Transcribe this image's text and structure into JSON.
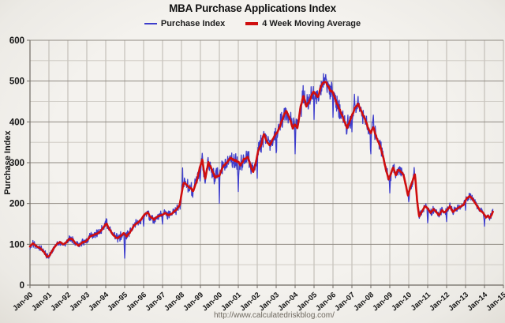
{
  "title": "MBA Purchase Applications Index",
  "legend": {
    "items": [
      {
        "label": "Purchase Index",
        "color": "#3d3dcb",
        "thickness": 2
      },
      {
        "label": "4 Week Moving Average",
        "color": "#cf0e0e",
        "thickness": 4
      }
    ]
  },
  "watermark": "http://www.calculatedriskblog.com/",
  "axes": {
    "ylabel": "Purchase Index",
    "y_ticks": [
      0,
      100,
      200,
      300,
      400,
      500,
      600
    ],
    "x_labels": [
      "Jan-90",
      "Jan-91",
      "Jan-92",
      "Jan-93",
      "Jan-94",
      "Jan-95",
      "Jan-96",
      "Jan-97",
      "Jan-98",
      "Jan-99",
      "Jan-00",
      "Jan-01",
      "Jan-02",
      "Jan-03",
      "Jan-04",
      "Jan-05",
      "Jan-06",
      "Jan-07",
      "Jan-08",
      "Jan-09",
      "Jan-10",
      "Jan-11",
      "Jan-12",
      "Jan-13",
      "Jan-14",
      "Jan-15"
    ]
  },
  "colors": {
    "blue_line": "#3d3dcb",
    "red_line": "#cf0e0e",
    "grid_minor": "#c9c5be",
    "grid_major": "#8f8a82",
    "grid_vertical": "#b4afa8",
    "axis": "#6e6962",
    "label_text": "#151515"
  },
  "chart_data": {
    "type": "line",
    "title": "MBA Purchase Applications Index",
    "xlabel": "",
    "ylabel": "Purchase Index",
    "ylim": [
      0,
      600
    ],
    "y_major_step": 100,
    "y_minor_step": 50,
    "xlim": [
      1990,
      2015
    ],
    "x_tick_interval_years": 1,
    "grid": true,
    "legend_position": "top-center",
    "series": [
      {
        "name": "4 Week Moving Average",
        "color": "#cf0e0e",
        "width": 2.6,
        "points": [
          [
            1990.0,
            96
          ],
          [
            1990.15,
            102
          ],
          [
            1990.35,
            95
          ],
          [
            1990.55,
            90
          ],
          [
            1990.75,
            80
          ],
          [
            1990.92,
            68
          ],
          [
            1991.05,
            74
          ],
          [
            1991.25,
            90
          ],
          [
            1991.45,
            102
          ],
          [
            1991.6,
            106
          ],
          [
            1991.75,
            100
          ],
          [
            1991.9,
            104
          ],
          [
            1992.05,
            112
          ],
          [
            1992.2,
            114
          ],
          [
            1992.4,
            103
          ],
          [
            1992.55,
            96
          ],
          [
            1992.75,
            104
          ],
          [
            1992.95,
            107
          ],
          [
            1993.15,
            118
          ],
          [
            1993.4,
            124
          ],
          [
            1993.6,
            127
          ],
          [
            1993.8,
            136
          ],
          [
            1993.95,
            146
          ],
          [
            1994.05,
            151
          ],
          [
            1994.2,
            136
          ],
          [
            1994.4,
            122
          ],
          [
            1994.6,
            114
          ],
          [
            1994.8,
            121
          ],
          [
            1994.95,
            128
          ],
          [
            1995.1,
            119
          ],
          [
            1995.3,
            130
          ],
          [
            1995.5,
            146
          ],
          [
            1995.7,
            153
          ],
          [
            1995.9,
            163
          ],
          [
            1996.05,
            173
          ],
          [
            1996.2,
            178
          ],
          [
            1996.4,
            166
          ],
          [
            1996.55,
            161
          ],
          [
            1996.75,
            169
          ],
          [
            1996.95,
            171
          ],
          [
            1997.15,
            176
          ],
          [
            1997.35,
            171
          ],
          [
            1997.55,
            177
          ],
          [
            1997.75,
            186
          ],
          [
            1997.9,
            196
          ],
          [
            1998.0,
            224
          ],
          [
            1998.12,
            252
          ],
          [
            1998.3,
            244
          ],
          [
            1998.5,
            237
          ],
          [
            1998.62,
            231
          ],
          [
            1998.8,
            252
          ],
          [
            1998.95,
            285
          ],
          [
            1999.1,
            306
          ],
          [
            1999.25,
            262
          ],
          [
            1999.42,
            300
          ],
          [
            1999.6,
            284
          ],
          [
            1999.8,
            263
          ],
          [
            2000.0,
            268
          ],
          [
            2000.2,
            291
          ],
          [
            2000.4,
            301
          ],
          [
            2000.6,
            312
          ],
          [
            2000.8,
            307
          ],
          [
            2001.0,
            303
          ],
          [
            2001.12,
            294
          ],
          [
            2001.3,
            309
          ],
          [
            2001.5,
            313
          ],
          [
            2001.68,
            290
          ],
          [
            2001.78,
            275
          ],
          [
            2001.92,
            299
          ],
          [
            2002.05,
            328
          ],
          [
            2002.2,
            342
          ],
          [
            2002.35,
            371
          ],
          [
            2002.5,
            352
          ],
          [
            2002.65,
            341
          ],
          [
            2002.82,
            359
          ],
          [
            2003.0,
            371
          ],
          [
            2003.18,
            386
          ],
          [
            2003.4,
            416
          ],
          [
            2003.55,
            428
          ],
          [
            2003.72,
            408
          ],
          [
            2003.88,
            383
          ],
          [
            2004.0,
            394
          ],
          [
            2004.12,
            383
          ],
          [
            2004.3,
            440
          ],
          [
            2004.45,
            464
          ],
          [
            2004.6,
            437
          ],
          [
            2004.8,
            456
          ],
          [
            2004.95,
            474
          ],
          [
            2005.1,
            468
          ],
          [
            2005.2,
            459
          ],
          [
            2005.38,
            490
          ],
          [
            2005.52,
            499
          ],
          [
            2005.66,
            494
          ],
          [
            2005.82,
            480
          ],
          [
            2006.0,
            470
          ],
          [
            2006.2,
            446
          ],
          [
            2006.42,
            424
          ],
          [
            2006.6,
            400
          ],
          [
            2006.76,
            386
          ],
          [
            2006.92,
            406
          ],
          [
            2007.05,
            420
          ],
          [
            2007.2,
            438
          ],
          [
            2007.32,
            444
          ],
          [
            2007.5,
            426
          ],
          [
            2007.7,
            406
          ],
          [
            2007.88,
            382
          ],
          [
            2008.0,
            374
          ],
          [
            2008.14,
            386
          ],
          [
            2008.3,
            360
          ],
          [
            2008.48,
            342
          ],
          [
            2008.65,
            314
          ],
          [
            2008.8,
            282
          ],
          [
            2008.94,
            259
          ],
          [
            2009.08,
            276
          ],
          [
            2009.18,
            288
          ],
          [
            2009.32,
            269
          ],
          [
            2009.44,
            283
          ],
          [
            2009.58,
            278
          ],
          [
            2009.72,
            271
          ],
          [
            2009.86,
            242
          ],
          [
            2009.96,
            219
          ],
          [
            2010.1,
            243
          ],
          [
            2010.25,
            263
          ],
          [
            2010.33,
            272
          ],
          [
            2010.44,
            208
          ],
          [
            2010.55,
            168
          ],
          [
            2010.7,
            181
          ],
          [
            2010.85,
            193
          ],
          [
            2011.0,
            188
          ],
          [
            2011.15,
            177
          ],
          [
            2011.3,
            187
          ],
          [
            2011.45,
            179
          ],
          [
            2011.6,
            171
          ],
          [
            2011.75,
            183
          ],
          [
            2011.9,
            178
          ],
          [
            2012.05,
            185
          ],
          [
            2012.18,
            193
          ],
          [
            2012.32,
            179
          ],
          [
            2012.46,
            184
          ],
          [
            2012.6,
            189
          ],
          [
            2012.75,
            193
          ],
          [
            2012.9,
            197
          ],
          [
            2013.05,
            211
          ],
          [
            2013.2,
            218
          ],
          [
            2013.35,
            212
          ],
          [
            2013.5,
            201
          ],
          [
            2013.65,
            191
          ],
          [
            2013.8,
            181
          ],
          [
            2013.95,
            176
          ],
          [
            2014.08,
            166
          ],
          [
            2014.18,
            171
          ],
          [
            2014.28,
            165
          ],
          [
            2014.38,
            172
          ],
          [
            2014.45,
            180
          ]
        ]
      },
      {
        "name": "Purchase Index",
        "color": "#3d3dcb",
        "width": 1.3,
        "derived_from": "4 Week Moving Average",
        "sampling_per_year": 52,
        "noise_seed": 20141,
        "noise_amplitude_profile": [
          [
            1990.0,
            9
          ],
          [
            1993.0,
            10
          ],
          [
            1994.0,
            12
          ],
          [
            1997.5,
            13
          ],
          [
            1998.0,
            22
          ],
          [
            2000.0,
            24
          ],
          [
            2003.0,
            30
          ],
          [
            2005.0,
            30
          ],
          [
            2007.0,
            26
          ],
          [
            2008.5,
            22
          ],
          [
            2009.0,
            18
          ],
          [
            2010.0,
            13
          ],
          [
            2010.6,
            11
          ],
          [
            2014.5,
            11
          ]
        ],
        "spike_events": [
          [
            1994.03,
            18
          ],
          [
            1995.0,
            -62
          ],
          [
            1996.0,
            -28
          ],
          [
            1997.0,
            -22
          ],
          [
            1998.05,
            40
          ],
          [
            1999.0,
            -45
          ],
          [
            2000.0,
            -50
          ],
          [
            2001.0,
            -72
          ],
          [
            2002.0,
            -55
          ],
          [
            2003.0,
            -50
          ],
          [
            2004.0,
            -55
          ],
          [
            2005.0,
            -60
          ],
          [
            2005.5,
            20
          ],
          [
            2006.0,
            -60
          ],
          [
            2007.0,
            -50
          ],
          [
            2007.15,
            22
          ],
          [
            2008.0,
            -45
          ],
          [
            2008.12,
            28
          ],
          [
            2009.0,
            -35
          ],
          [
            2010.0,
            -28
          ],
          [
            2010.28,
            20
          ],
          [
            2011.0,
            -38
          ],
          [
            2012.0,
            -30
          ],
          [
            2013.0,
            -25
          ],
          [
            2014.0,
            -28
          ]
        ]
      }
    ]
  }
}
